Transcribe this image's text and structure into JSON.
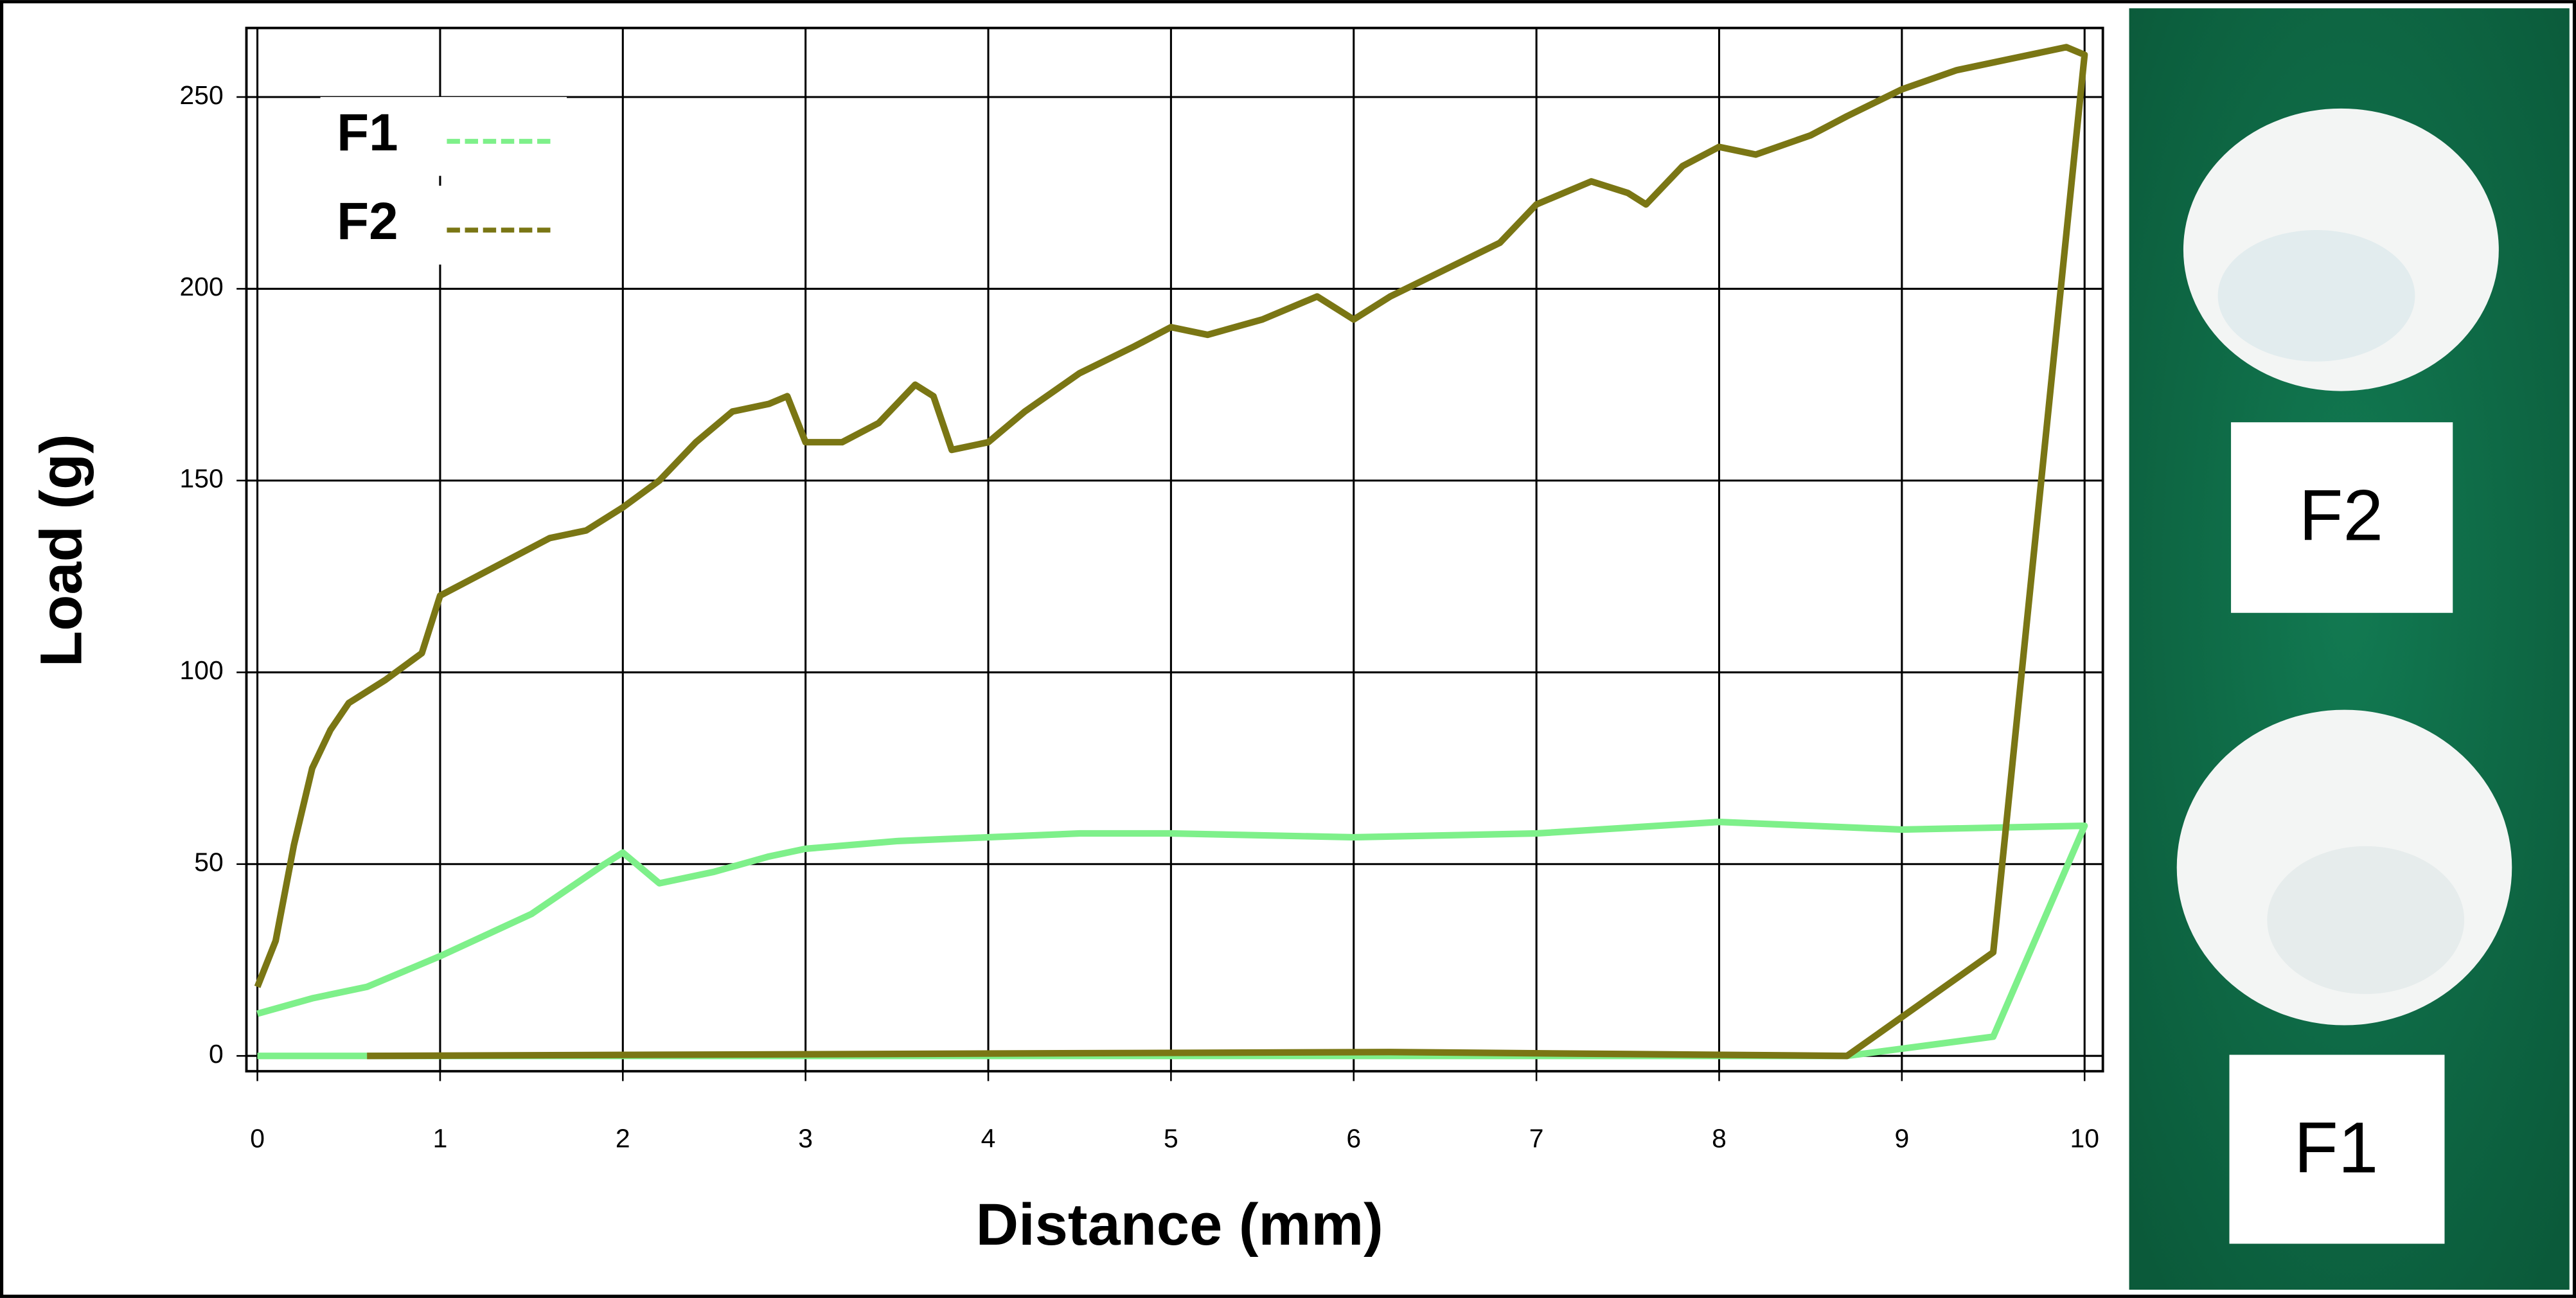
{
  "chart_data": {
    "type": "line",
    "x_label": "Distance (mm)",
    "y_label": "Load (g)",
    "xlim": [
      -0.06,
      10.1
    ],
    "ylim": [
      -4,
      268
    ],
    "xticks": [
      0,
      1,
      2,
      3,
      4,
      5,
      6,
      7,
      8,
      9,
      10
    ],
    "yticks": [
      0,
      50,
      100,
      150,
      200,
      250
    ],
    "grid": true,
    "legend": "upper left",
    "series": [
      {
        "name": "F1",
        "color": "#7ef08a",
        "x": [
          0,
          0.3,
          0.6,
          1,
          1.5,
          1.9,
          2.0,
          2.2,
          2.5,
          2.8,
          3.0,
          3.5,
          4,
          4.5,
          5,
          6,
          7,
          8,
          8.5,
          9,
          10,
          9.5,
          8.7,
          6,
          0
        ],
        "values": [
          11,
          15,
          18,
          26,
          37,
          50,
          53,
          45,
          48,
          52,
          54,
          56,
          57,
          58,
          58,
          57,
          58,
          61,
          60,
          59,
          60,
          5,
          0,
          0,
          0
        ]
      },
      {
        "name": "F2",
        "color": "#7a7614",
        "x": [
          0,
          0.1,
          0.2,
          0.3,
          0.4,
          0.5,
          0.7,
          0.9,
          1.0,
          1.2,
          1.4,
          1.6,
          1.8,
          2.0,
          2.2,
          2.4,
          2.6,
          2.8,
          2.9,
          3.0,
          3.2,
          3.4,
          3.6,
          3.7,
          3.8,
          4.0,
          4.2,
          4.5,
          4.8,
          5.0,
          5.2,
          5.5,
          5.8,
          6.0,
          6.2,
          6.5,
          6.8,
          7.0,
          7.3,
          7.5,
          7.6,
          7.8,
          8.0,
          8.2,
          8.5,
          8.7,
          9.0,
          9.3,
          9.6,
          9.9,
          10.0,
          9.5,
          8.7,
          6.2,
          0.6
        ],
        "values": [
          18,
          30,
          55,
          75,
          85,
          92,
          98,
          105,
          120,
          125,
          130,
          135,
          137,
          143,
          150,
          160,
          168,
          170,
          172,
          160,
          160,
          165,
          175,
          172,
          158,
          160,
          168,
          178,
          185,
          190,
          188,
          192,
          198,
          192,
          198,
          205,
          212,
          222,
          228,
          225,
          222,
          232,
          237,
          235,
          240,
          245,
          252,
          257,
          260,
          263,
          261,
          27,
          0,
          1,
          0
        ]
      }
    ]
  },
  "photo": {
    "labels": [
      "F2",
      "F1"
    ]
  }
}
